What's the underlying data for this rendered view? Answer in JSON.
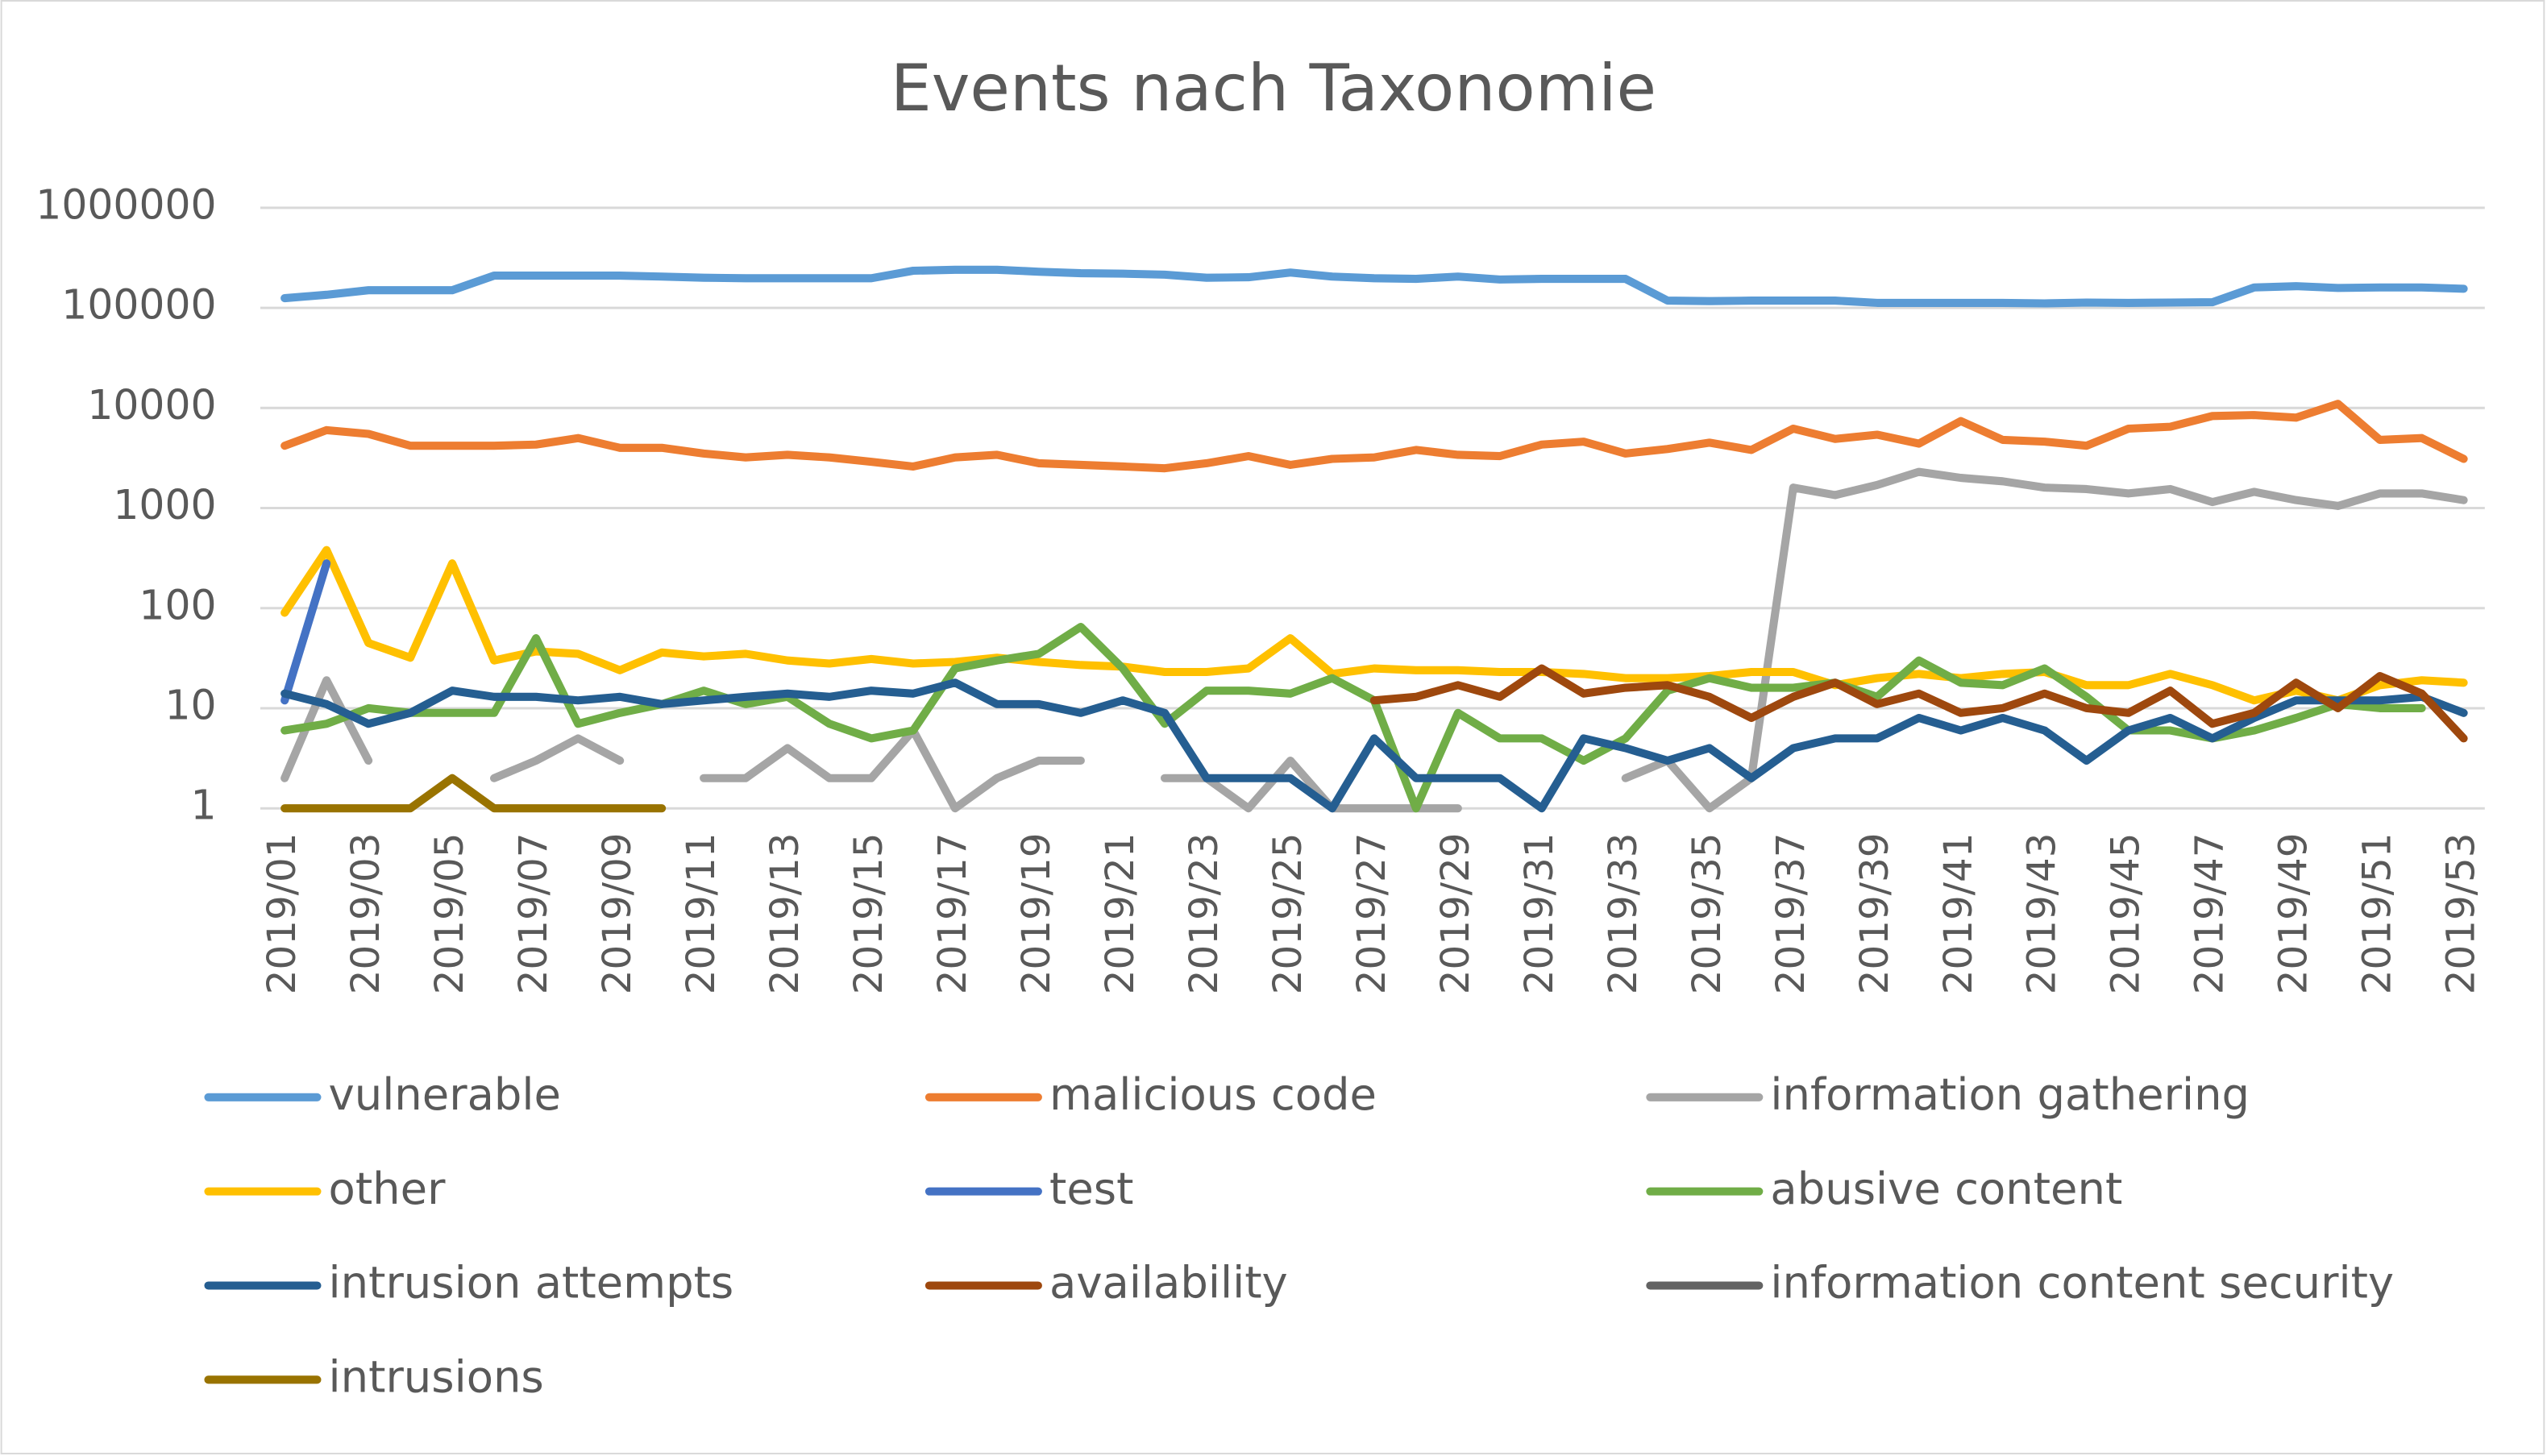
{
  "chart_data": {
    "type": "line",
    "title": "Events nach Taxonomie",
    "categories": [
      "2019/01",
      null,
      "2019/03",
      null,
      "2019/05",
      null,
      "2019/07",
      null,
      "2019/09",
      null,
      "2019/11",
      null,
      "2019/13",
      null,
      "2019/15",
      null,
      "2019/17",
      null,
      "2019/19",
      null,
      "2019/21",
      null,
      "2019/23",
      null,
      "2019/25",
      null,
      "2019/27",
      null,
      "2019/29",
      null,
      "2019/31",
      null,
      "2019/33",
      null,
      "2019/35",
      null,
      "2019/37",
      null,
      "2019/39",
      null,
      "2019/41",
      null,
      "2019/43",
      null,
      "2019/45",
      null,
      "2019/47",
      null,
      "2019/49",
      null,
      "2019/51",
      null,
      "2019/53"
    ],
    "log_scale": true,
    "grid": true,
    "legend": "bottom",
    "ylim": [
      1,
      1000000
    ],
    "yticks": [
      1,
      10,
      100,
      1000,
      10000,
      100000,
      1000000
    ],
    "series": [
      {
        "name": "vulnerable",
        "color": "#5B9BD5",
        "values": [
          125000,
          135000,
          150000,
          150000,
          150000,
          210000,
          210000,
          210000,
          210000,
          205000,
          200000,
          198000,
          198000,
          198000,
          198000,
          235000,
          240000,
          240000,
          230000,
          222000,
          220000,
          215000,
          200000,
          202000,
          225000,
          205000,
          198000,
          195000,
          205000,
          192000,
          195000,
          195000,
          195000,
          118000,
          117000,
          118000,
          118000,
          118000,
          112000,
          112000,
          112000,
          112000,
          111000,
          113000,
          112000,
          113000,
          114000,
          160000,
          165000,
          158000,
          160000,
          160000,
          155000
        ]
      },
      {
        "name": "malicious code",
        "color": "#ED7D31",
        "values": [
          4200,
          6000,
          5500,
          4200,
          4200,
          4200,
          4300,
          5000,
          4000,
          4000,
          3500,
          3200,
          3400,
          3200,
          2900,
          2600,
          3200,
          3400,
          2800,
          2700,
          2600,
          2500,
          2800,
          3300,
          2700,
          3100,
          3200,
          3800,
          3400,
          3300,
          4300,
          4600,
          3500,
          3900,
          4500,
          3800,
          6200,
          4900,
          5400,
          4400,
          7400,
          4800,
          4600,
          4200,
          6200,
          6500,
          8300,
          8500,
          8000,
          11000,
          4800,
          5000,
          3100
        ]
      },
      {
        "name": "information gathering",
        "color": "#A5A5A5",
        "values": [
          2,
          19,
          3,
          null,
          null,
          2,
          3,
          5,
          3,
          null,
          2,
          2,
          4,
          2,
          2,
          6,
          1,
          2,
          3,
          3,
          null,
          2,
          2,
          1,
          3,
          1,
          1,
          1,
          1,
          null,
          null,
          null,
          2,
          3,
          1,
          2,
          1600,
          1350,
          1700,
          2300,
          2000,
          1850,
          1600,
          1550,
          1400,
          1550,
          1150,
          1450,
          1200,
          1050,
          1400,
          1400,
          1200
        ]
      },
      {
        "name": "other",
        "color": "#FFC000",
        "values": [
          90,
          380,
          45,
          32,
          280,
          30,
          37,
          35,
          24,
          36,
          33,
          35,
          30,
          28,
          31,
          28,
          29,
          32,
          29,
          27,
          26,
          23,
          23,
          25,
          50,
          22,
          25,
          24,
          24,
          23,
          23,
          22,
          20,
          20,
          21,
          23,
          23,
          17,
          20,
          22,
          20,
          22,
          23,
          17,
          17,
          22,
          17,
          12,
          15,
          12,
          17,
          19,
          18
        ]
      },
      {
        "name": "test",
        "color": "#4472C4",
        "values": [
          12,
          280,
          null,
          null,
          null,
          null,
          null,
          null,
          null,
          null,
          null,
          null,
          null,
          null,
          null,
          null,
          null,
          null,
          null,
          null,
          null,
          null,
          null,
          null,
          null,
          null,
          null,
          null,
          null,
          null,
          null,
          null,
          null,
          null,
          null,
          null,
          null,
          null,
          null,
          null,
          null,
          null,
          null,
          null,
          null,
          null,
          null,
          null,
          null,
          null,
          null,
          null,
          null
        ]
      },
      {
        "name": "abusive content",
        "color": "#70AD47",
        "values": [
          6,
          7,
          10,
          9,
          9,
          9,
          50,
          7,
          9,
          11,
          15,
          11,
          13,
          7,
          5,
          6,
          25,
          30,
          35,
          65,
          25,
          7,
          15,
          15,
          14,
          20,
          12,
          1,
          9,
          5,
          5,
          3,
          5,
          15,
          20,
          16,
          16,
          18,
          13,
          30,
          18,
          17,
          25,
          13,
          6,
          6,
          5,
          6,
          8,
          11,
          10,
          10,
          null
        ]
      },
      {
        "name": "intrusion attempts",
        "color": "#255E91",
        "values": [
          14,
          11,
          7,
          9,
          15,
          13,
          13,
          12,
          13,
          11,
          12,
          13,
          14,
          13,
          15,
          14,
          18,
          11,
          11,
          9,
          12,
          9,
          2,
          2,
          2,
          1,
          5,
          2,
          2,
          2,
          1,
          5,
          4,
          3,
          4,
          2,
          4,
          5,
          5,
          8,
          6,
          8,
          6,
          3,
          6,
          8,
          5,
          8,
          12,
          12,
          12,
          13,
          9
        ]
      },
      {
        "name": "availability",
        "color": "#9E480E",
        "values": [
          null,
          null,
          null,
          null,
          null,
          null,
          null,
          null,
          null,
          null,
          null,
          null,
          null,
          null,
          null,
          null,
          null,
          null,
          null,
          null,
          null,
          null,
          null,
          null,
          null,
          null,
          12,
          13,
          17,
          13,
          25,
          14,
          16,
          17,
          13,
          8,
          13,
          18,
          11,
          14,
          9,
          10,
          14,
          10,
          9,
          15,
          7,
          9,
          18,
          10,
          21,
          14,
          5
        ]
      },
      {
        "name": "information content security",
        "color": "#636363",
        "values": [
          null,
          null,
          null,
          null,
          null,
          null,
          null,
          null,
          null,
          null,
          null,
          null,
          null,
          null,
          null,
          null,
          null,
          null,
          null,
          null,
          null,
          null,
          null,
          null,
          null,
          null,
          null,
          null,
          null,
          null,
          null,
          null,
          null,
          null,
          null,
          null,
          null,
          null,
          null,
          null,
          null,
          null,
          null,
          null,
          null,
          null,
          null,
          null,
          null,
          null,
          null,
          null,
          null
        ]
      },
      {
        "name": "intrusions",
        "color": "#997300",
        "values": [
          1,
          1,
          1,
          1,
          2,
          1,
          1,
          1,
          1,
          1,
          null,
          null,
          null,
          null,
          null,
          null,
          null,
          null,
          null,
          null,
          null,
          null,
          null,
          null,
          null,
          null,
          null,
          null,
          null,
          null,
          null,
          null,
          null,
          null,
          null,
          null,
          null,
          null,
          null,
          null,
          null,
          null,
          null,
          null,
          null,
          null,
          null,
          null,
          null,
          null,
          null,
          null,
          null
        ]
      }
    ]
  }
}
